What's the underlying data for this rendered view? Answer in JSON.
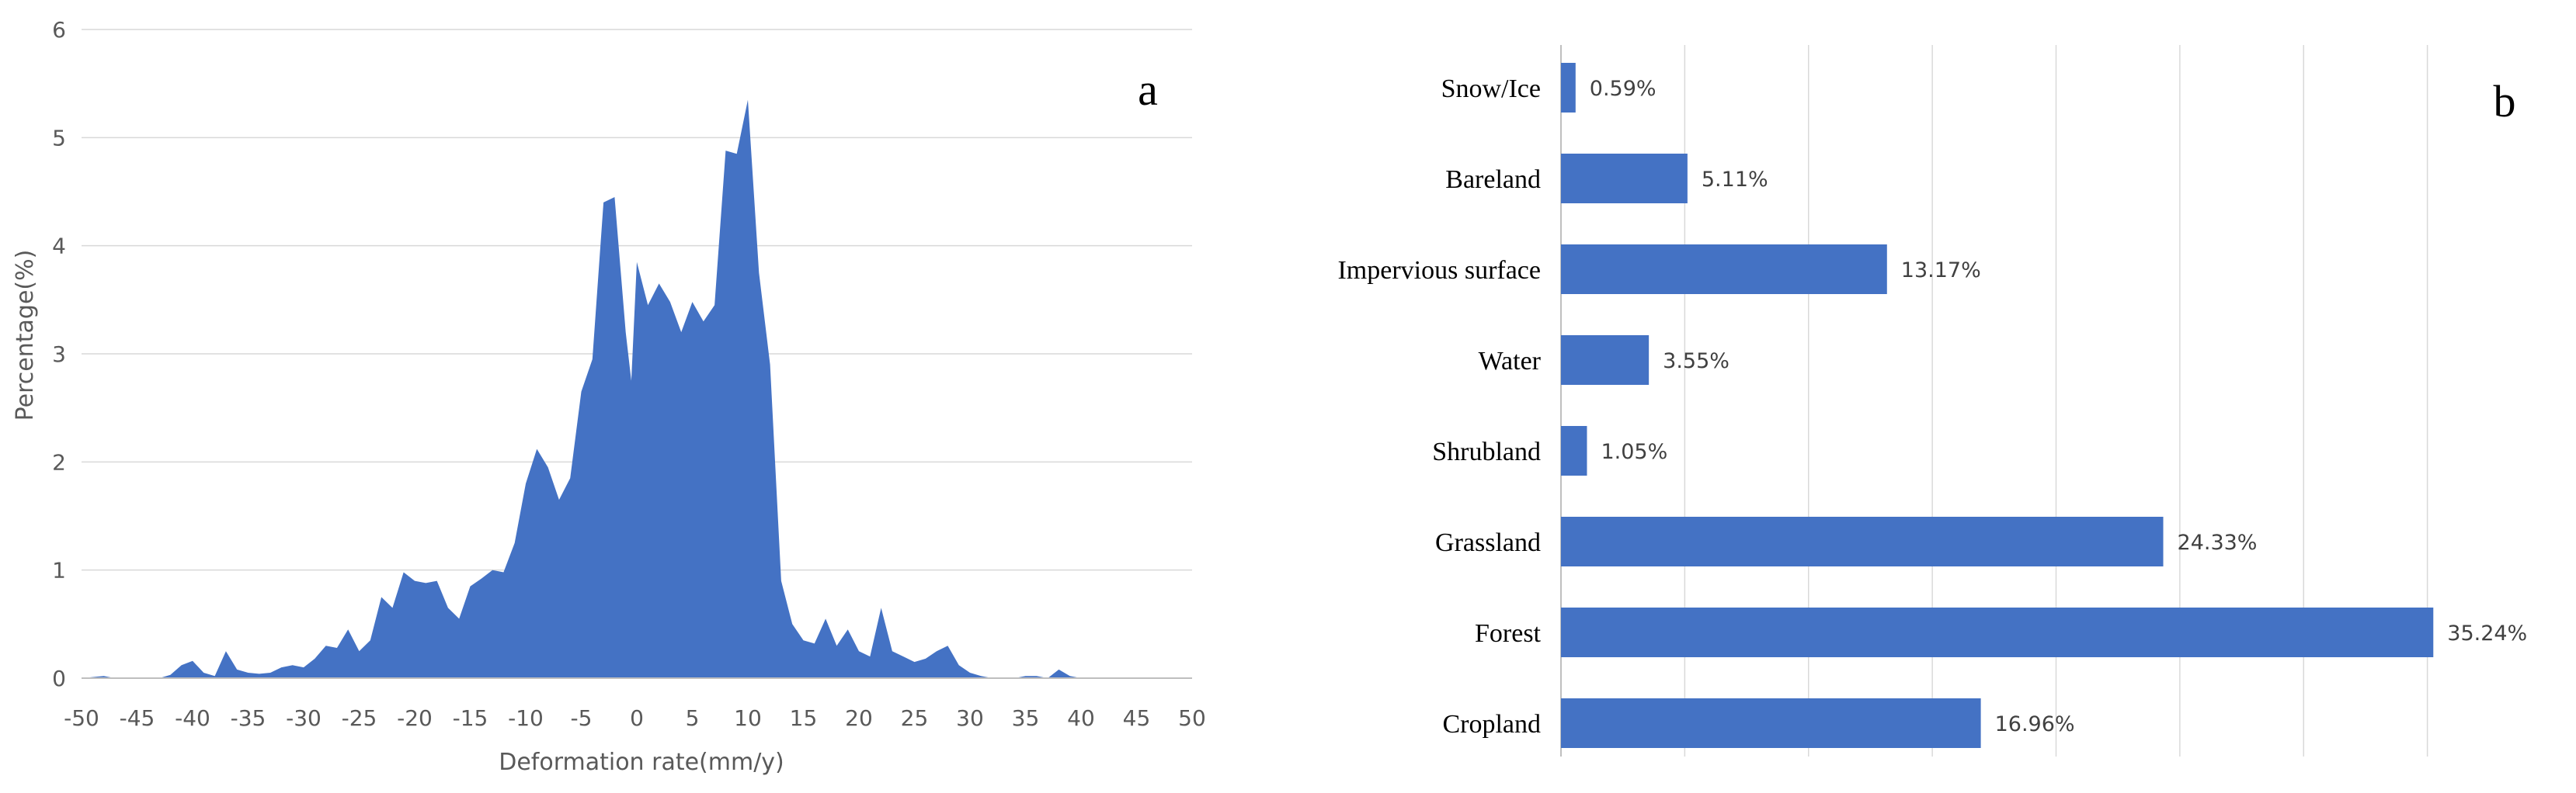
{
  "colors": {
    "series": "#4472C4",
    "grid": "#D9D9D9",
    "axis": "#BFBFBF"
  },
  "chart_data": [
    {
      "type": "area",
      "panel_label": "a",
      "title": "",
      "xlabel": "Deformation rate(mm/y)",
      "ylabel": "Percentage(%)",
      "xlim": [
        -50,
        50
      ],
      "ylim": [
        0,
        6
      ],
      "xticks": [
        -50,
        -45,
        -40,
        -35,
        -30,
        -25,
        -20,
        -15,
        -10,
        -5,
        0,
        5,
        10,
        15,
        20,
        25,
        30,
        35,
        40,
        45,
        50
      ],
      "yticks": [
        0,
        1,
        2,
        3,
        4,
        5,
        6
      ],
      "grid": "horizontal",
      "series": [
        {
          "name": "Percentage",
          "x": [
            -50,
            -48,
            -47,
            -45,
            -43,
            -42,
            -41,
            -40,
            -39,
            -38,
            -37,
            -36,
            -35,
            -34,
            -33,
            -32,
            -31,
            -30,
            -29,
            -28,
            -27,
            -26,
            -25,
            -24,
            -23,
            -22,
            -21,
            -20,
            -19,
            -18,
            -17,
            -16,
            -15,
            -14,
            -13,
            -12,
            -11,
            -10,
            -9,
            -8,
            -7,
            -6,
            -5,
            -4,
            -3,
            -2,
            -1,
            -0.5,
            0,
            1,
            2,
            3,
            4,
            5,
            6,
            7,
            8,
            9,
            10,
            11,
            12,
            13,
            14,
            15,
            16,
            17,
            18,
            19,
            20,
            21,
            22,
            23,
            24,
            25,
            26,
            27,
            28,
            29,
            30,
            31,
            32,
            33,
            34,
            35,
            36,
            37,
            38,
            39,
            40,
            41,
            42,
            43,
            44,
            45
          ],
          "y": [
            0,
            0.02,
            0,
            0,
            0,
            0.03,
            0.12,
            0.16,
            0.05,
            0.02,
            0.25,
            0.08,
            0.05,
            0.04,
            0.05,
            0.1,
            0.12,
            0.1,
            0.18,
            0.3,
            0.28,
            0.45,
            0.25,
            0.35,
            0.75,
            0.65,
            0.98,
            0.9,
            0.88,
            0.9,
            0.65,
            0.55,
            0.85,
            0.92,
            1.0,
            0.98,
            1.25,
            1.8,
            2.12,
            1.95,
            1.65,
            1.85,
            2.65,
            2.95,
            4.4,
            4.45,
            3.2,
            2.75,
            3.85,
            3.45,
            3.65,
            3.48,
            3.2,
            3.48,
            3.3,
            3.45,
            4.88,
            4.85,
            5.35,
            3.75,
            2.9,
            0.9,
            0.5,
            0.35,
            0.32,
            0.55,
            0.3,
            0.45,
            0.25,
            0.2,
            0.65,
            0.25,
            0.2,
            0.15,
            0.18,
            0.25,
            0.3,
            0.12,
            0.05,
            0.02,
            0,
            0,
            0,
            0.02,
            0.02,
            0,
            0.08,
            0.02,
            0,
            0,
            0,
            0,
            0,
            0
          ]
        }
      ]
    },
    {
      "type": "bar",
      "orientation": "horizontal",
      "panel_label": "b",
      "title": "",
      "xlabel": "",
      "ylabel": "",
      "xlim": [
        0,
        40
      ],
      "xgrid_step": 5,
      "categories": [
        "Snow/Ice",
        "Bareland",
        "Impervious surface",
        "Water",
        "Shrubland",
        "Grassland",
        "Forest",
        "Cropland"
      ],
      "values": [
        0.59,
        5.11,
        13.17,
        3.55,
        1.05,
        24.33,
        35.24,
        16.96
      ],
      "data_labels": [
        "0.59%",
        "5.11%",
        "13.17%",
        "3.55%",
        "1.05%",
        "24.33%",
        "35.24%",
        "16.96%"
      ]
    }
  ]
}
